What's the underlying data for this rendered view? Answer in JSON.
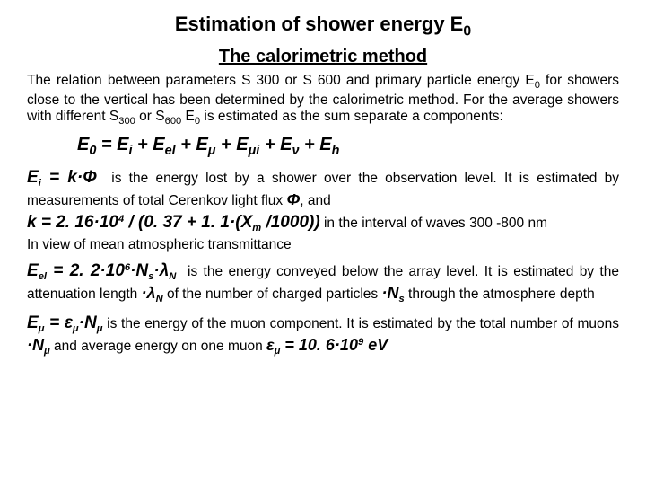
{
  "title_pre": "Estimation of shower energy E",
  "title_sub": "0",
  "subtitle": "The calorimetric method",
  "intro_1": "The relation between parameters S 300 or S 600 and primary particle energy E",
  "intro_2": " for showers close to the vertical has been determined by the calorimetric method. For the average showers with different S",
  "intro_3": " or S",
  "intro_4": " E",
  "intro_5": " is estimated as the sum separate a components:",
  "sub_0": "0",
  "sub_300": "300",
  "sub_600": "600",
  "eq_main": "E",
  "eq_main_rest_a": " = E",
  "eq_main_rest_b": " + E",
  "eq_i": "i",
  "eq_el": "el",
  "eq_mu": "μ",
  "eq_mui": "μi",
  "eq_nu": "ν",
  "eq_h": "h",
  "ei_lhs_a": "E",
  "ei_lhs_b": " = k·",
  "phi": "Φ",
  "ei_tail_a": "is the energy lost by a shower over the observation level. It is estimated by measurements of total Cerenkov light flux ",
  "ei_tail_b": ", and",
  "k_lhs": "k = 2. 16·10",
  "k_exp": "4",
  "k_rhs_a": " / (0. 37 + 1. 1·(X",
  "k_rhs_b": " /1000))",
  "k_sub_m": "m",
  "k_tail": " in the interval of waves 300 -800 nm",
  "k_line2": "In view of mean atmospheric transmittance",
  "eel_lhs_a": "E",
  "eel_lhs_b": " = 2. 2·10",
  "eel_exp": "6",
  "eel_lhs_c": "·N",
  "eel_lhs_d": "·λ",
  "eel_sub_s": "s",
  "eel_sub_N": "N",
  "eel_tail_a": "is the energy conveyed below the array level. It is estimated by the attenuation length ",
  "eel_tail_b": " of the number of charged particles ",
  "eel_tail_c": " through the atmosphere depth",
  "emu_lhs_a": "E",
  "emu_lhs_b": " = ε",
  "emu_lhs_c": "·N",
  "emu_sub_mu": "μ",
  "emu_tail_a": " is the energy of the muon component. It is estimated by the total number of muons ",
  "emu_tail_b": " and average energy on one muon ",
  "emu_val_a": "ε",
  "emu_val_b": " = 10. 6·10",
  "emu_exp": "9",
  "emu_val_c": " eV"
}
